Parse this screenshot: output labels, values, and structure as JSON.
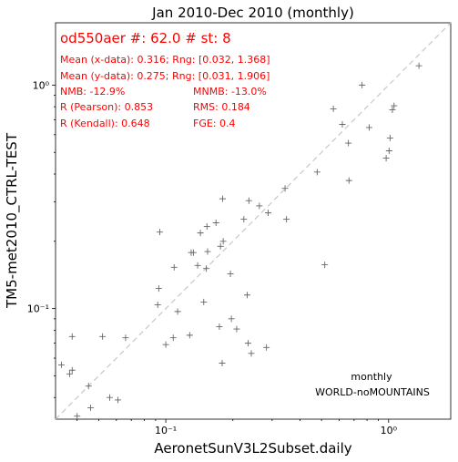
{
  "chart_data": {
    "type": "scatter",
    "title": "Jan 2010-Dec 2010 (monthly)",
    "xlabel": "AeronetSunV3L2Subset.daily",
    "ylabel": "TM5-met2010_CTRL-TEST",
    "xscale": "log",
    "yscale": "log",
    "xlim": [
      0.032,
      1.9
    ],
    "ylim": [
      0.032,
      1.9
    ],
    "x_ticks": [
      0.1,
      1.0
    ],
    "x_tick_labels": [
      "10⁻¹",
      "10⁰"
    ],
    "y_ticks": [
      0.1,
      1.0
    ],
    "y_tick_labels": [
      "10⁻¹",
      "10⁰"
    ],
    "identity_line": true,
    "marker": "+",
    "marker_color": "#666666",
    "identity_line_color": "#c8c8c8",
    "stats_color": "#ff0000",
    "stats": {
      "headline": "od550aer #: 62.0 # st: 8",
      "mean_x": "Mean (x-data): 0.316; Rng: [0.032, 1.368]",
      "mean_y": "Mean (y-data): 0.275; Rng: [0.031, 1.906]",
      "nmb": "NMB: -12.9%",
      "mnmb": "MNMB: -13.0%",
      "pearson": "R (Pearson): 0.853",
      "rms": "RMS: 0.184",
      "kendall": "R (Kendall): 0.648",
      "fge": "FGE: 0.4"
    },
    "annotations": [
      "monthly",
      "WORLD-noMOUNTAINS"
    ],
    "points": [
      [
        0.034,
        0.056
      ],
      [
        0.037,
        0.051
      ],
      [
        0.038,
        0.053
      ],
      [
        0.038,
        0.075
      ],
      [
        0.04,
        0.033
      ],
      [
        0.045,
        0.045
      ],
      [
        0.046,
        0.036
      ],
      [
        0.052,
        0.075
      ],
      [
        0.056,
        0.04
      ],
      [
        0.061,
        0.039
      ],
      [
        0.066,
        0.074
      ],
      [
        0.092,
        0.104
      ],
      [
        0.093,
        0.123
      ],
      [
        0.094,
        0.22
      ],
      [
        0.1,
        0.069
      ],
      [
        0.108,
        0.074
      ],
      [
        0.109,
        0.153
      ],
      [
        0.113,
        0.097
      ],
      [
        0.128,
        0.076
      ],
      [
        0.13,
        0.178
      ],
      [
        0.133,
        0.178
      ],
      [
        0.139,
        0.156
      ],
      [
        0.143,
        0.218
      ],
      [
        0.148,
        0.107
      ],
      [
        0.152,
        0.151
      ],
      [
        0.153,
        0.233
      ],
      [
        0.154,
        0.18
      ],
      [
        0.168,
        0.242
      ],
      [
        0.174,
        0.083
      ],
      [
        0.176,
        0.19
      ],
      [
        0.179,
        0.057
      ],
      [
        0.18,
        0.31
      ],
      [
        0.181,
        0.2
      ],
      [
        0.195,
        0.143
      ],
      [
        0.197,
        0.09
      ],
      [
        0.208,
        0.081
      ],
      [
        0.224,
        0.251
      ],
      [
        0.232,
        0.115
      ],
      [
        0.234,
        0.07
      ],
      [
        0.236,
        0.304
      ],
      [
        0.242,
        0.063
      ],
      [
        0.263,
        0.288
      ],
      [
        0.283,
        0.067
      ],
      [
        0.288,
        0.268
      ],
      [
        0.343,
        0.345
      ],
      [
        0.348,
        0.251
      ],
      [
        0.478,
        0.408
      ],
      [
        0.517,
        0.157
      ],
      [
        0.565,
        0.783
      ],
      [
        0.62,
        0.667
      ],
      [
        0.66,
        0.55
      ],
      [
        0.664,
        0.374
      ],
      [
        0.76,
        1.0
      ],
      [
        0.818,
        0.646
      ],
      [
        0.975,
        0.471
      ],
      [
        1.005,
        0.508
      ],
      [
        1.015,
        0.58
      ],
      [
        1.04,
        0.775
      ],
      [
        1.058,
        0.808
      ],
      [
        1.368,
        1.22
      ]
    ]
  }
}
